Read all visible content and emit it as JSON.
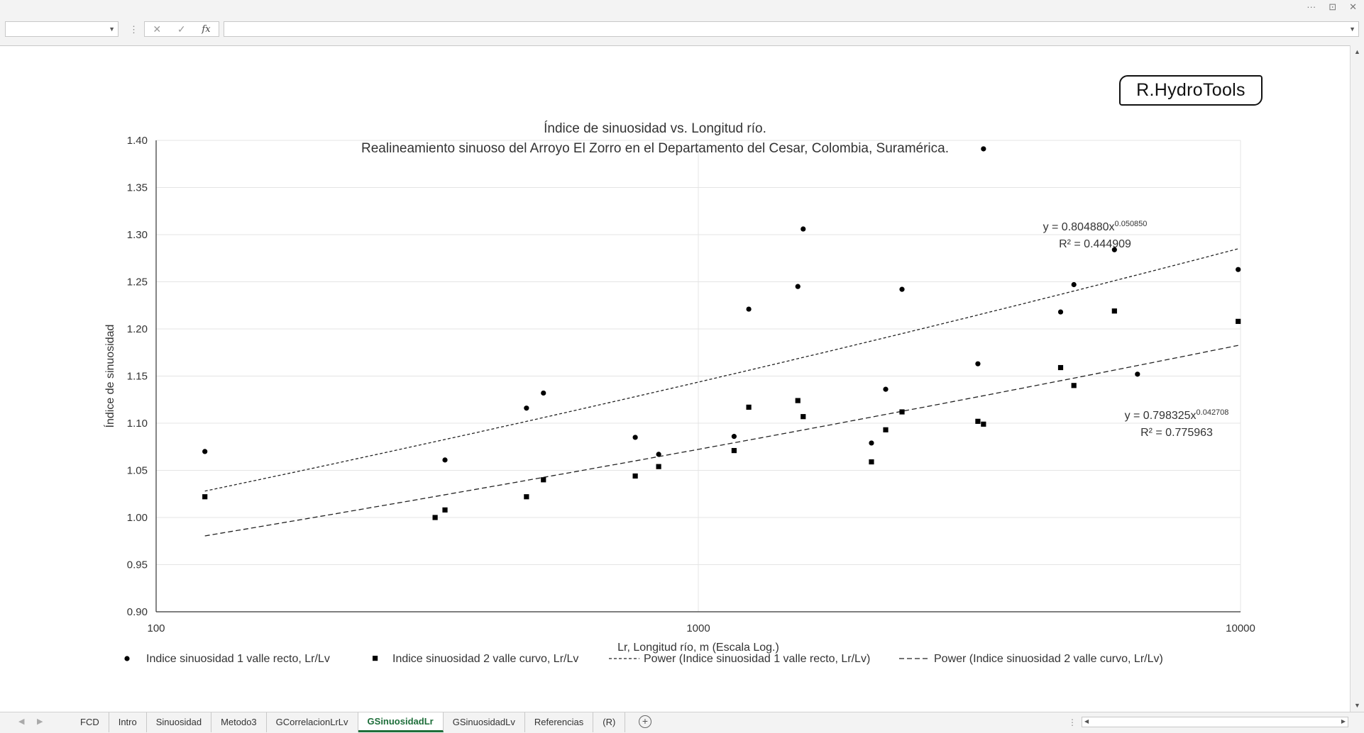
{
  "window": {
    "controls": [
      "···",
      "⊡",
      "✕"
    ]
  },
  "formula_bar": {
    "name_box": "",
    "cancel_icon": "✕",
    "enter_icon": "✓",
    "fx_label": "fx",
    "formula": ""
  },
  "logo": {
    "text": "R.HydroTools"
  },
  "chart_data": {
    "type": "scatter",
    "title": "Índice de sinuosidad vs. Longitud río.",
    "subtitle": "Realineamiento sinuoso del Arroyo El Zorro en el Departamento del Cesar, Colombia, Suramérica.",
    "xlabel": "Lr, Longitud río, m (Escala Log.)",
    "ylabel": "Índice de sinuosidad",
    "x_scale": "log",
    "xlim": [
      100,
      10000
    ],
    "ylim": [
      0.9,
      1.4
    ],
    "x_ticks": [
      "100",
      "1000",
      "10000"
    ],
    "y_ticks": [
      "0.90",
      "0.95",
      "1.00",
      "1.05",
      "1.10",
      "1.15",
      "1.20",
      "1.25",
      "1.30",
      "1.35",
      "1.40"
    ],
    "grid": "major gridlines",
    "legend_position": "bottom",
    "series": [
      {
        "name": "Indice sinuosidad 1 valle recto, Lr/Lv",
        "marker": "circle",
        "points": [
          [
            123,
            1.07
          ],
          [
            341,
            1.061
          ],
          [
            482,
            1.116
          ],
          [
            518,
            1.132
          ],
          [
            765,
            1.085
          ],
          [
            845,
            1.067
          ],
          [
            1164,
            1.086
          ],
          [
            1239,
            1.221
          ],
          [
            1526,
            1.245
          ],
          [
            1561,
            1.306
          ],
          [
            2086,
            1.079
          ],
          [
            2216,
            1.136
          ],
          [
            2375,
            1.242
          ],
          [
            3278,
            1.163
          ],
          [
            3357,
            1.391
          ],
          [
            4658,
            1.218
          ],
          [
            4928,
            1.247
          ],
          [
            5854,
            1.284
          ],
          [
            6456,
            1.152
          ],
          [
            9901,
            1.263
          ]
        ]
      },
      {
        "name": "Indice sinuosidad 2 valle curvo, Lr/Lv",
        "marker": "square",
        "points": [
          [
            123,
            1.022
          ],
          [
            327,
            1.0
          ],
          [
            341,
            1.008
          ],
          [
            482,
            1.022
          ],
          [
            518,
            1.04
          ],
          [
            765,
            1.044
          ],
          [
            845,
            1.054
          ],
          [
            1164,
            1.071
          ],
          [
            1239,
            1.117
          ],
          [
            1526,
            1.124
          ],
          [
            1561,
            1.107
          ],
          [
            2086,
            1.059
          ],
          [
            2216,
            1.093
          ],
          [
            2375,
            1.112
          ],
          [
            3278,
            1.102
          ],
          [
            3357,
            1.099
          ],
          [
            4658,
            1.159
          ],
          [
            4928,
            1.14
          ],
          [
            5854,
            1.219
          ],
          [
            9901,
            1.208
          ]
        ]
      },
      {
        "name": "Power (Indice sinuosidad 1 valle recto, Lr/Lv)",
        "type": "trendline",
        "dash": "short",
        "coef": 0.80488,
        "exponent": 0.05085,
        "x_range": [
          123,
          9901
        ],
        "equation": "y = 0.804880x",
        "equation_exp": "0.050850",
        "r2": "R² = 0.444909"
      },
      {
        "name": "Power (Indice sinuosidad 2 valle curvo, Lr/Lv)",
        "type": "trendline",
        "dash": "long",
        "coef": 0.798325,
        "exponent": 0.042708,
        "x_range": [
          123,
          9901
        ],
        "equation": "y = 0.798325x",
        "equation_exp": "0.042708",
        "r2": "R² = 0.775963"
      }
    ]
  },
  "sheet_tabs": {
    "tabs": [
      "FCD",
      "Intro",
      "Sinuosidad",
      "Metodo3",
      "GCorrelacionLrLv",
      "GSinuosidadLr",
      "GSinuosidadLv",
      "Referencias",
      "(R)"
    ],
    "active": "GSinuosidadLr"
  }
}
